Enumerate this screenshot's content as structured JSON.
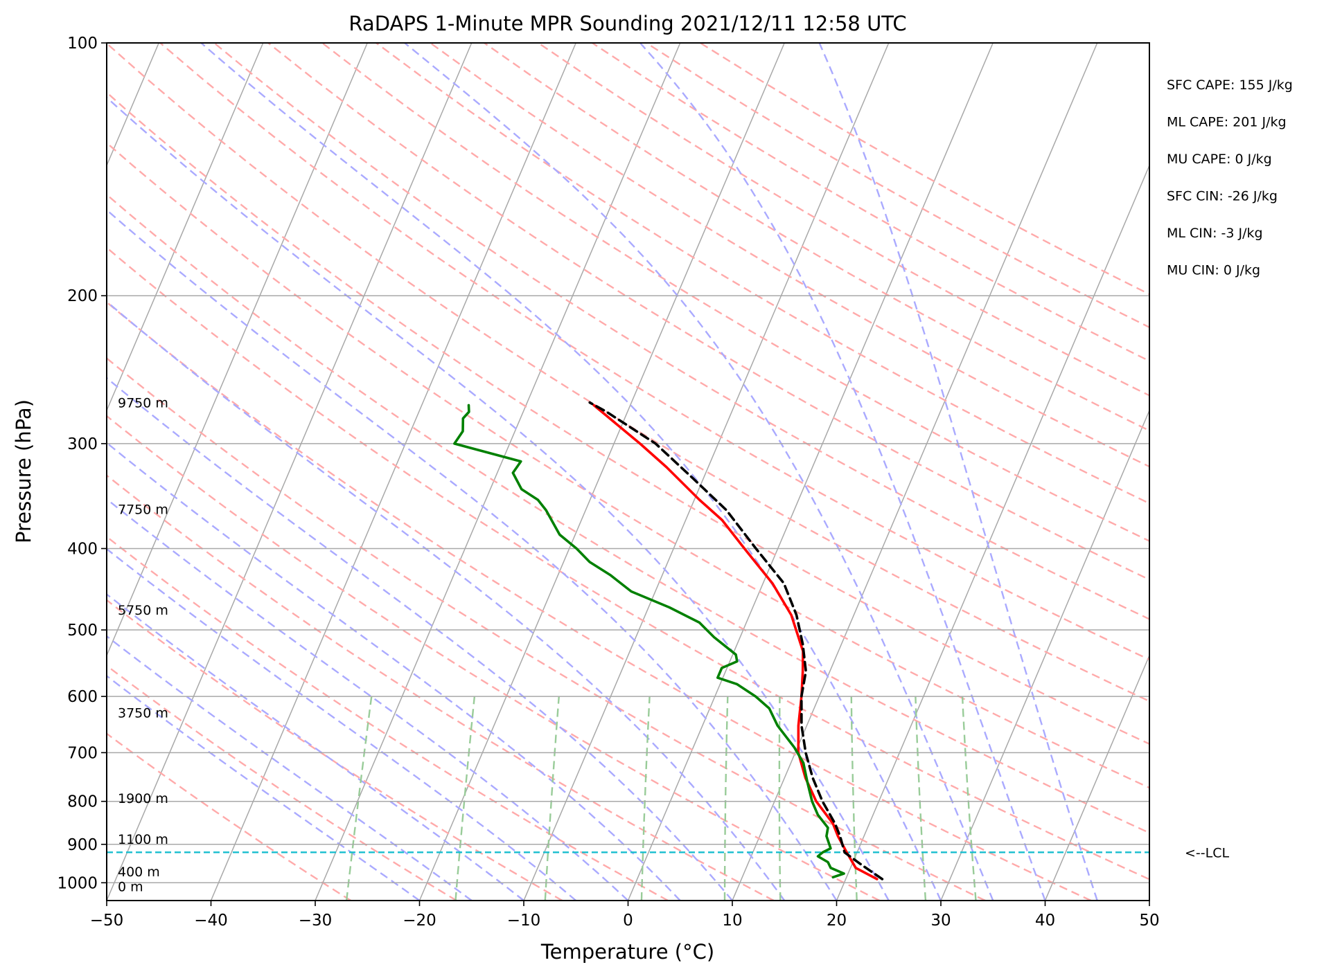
{
  "chart_data": {
    "type": "line",
    "title": "RaDAPS 1-Minute MPR Sounding 2021/12/11 12:58 UTC",
    "xlabel": "Temperature (°C)",
    "ylabel": "Pressure (hPa)",
    "xlim": [
      -50,
      50
    ],
    "ylim": [
      1050,
      100
    ],
    "yscale": "log",
    "skew": "skew-T log-P",
    "x_ticks": [
      "−50",
      "−40",
      "−30",
      "−20",
      "−10",
      "0",
      "10",
      "20",
      "30",
      "40",
      "50"
    ],
    "y_ticks": [
      "100",
      "200",
      "300",
      "400",
      "500",
      "600",
      "700",
      "800",
      "900",
      "1000"
    ],
    "height_labels": [
      {
        "text": "9750 m",
        "p": 268
      },
      {
        "text": "7750 m",
        "p": 359
      },
      {
        "text": "5750 m",
        "p": 473
      },
      {
        "text": "3750 m",
        "p": 627
      },
      {
        "text": "1900 m",
        "p": 793
      },
      {
        "text": "1100 m",
        "p": 887
      },
      {
        "text": "400 m",
        "p": 970
      },
      {
        "text": "0 m",
        "p": 1010
      }
    ],
    "stats": [
      "SFC CAPE: 155 J/kg",
      "ML CAPE: 201 J/kg",
      "MU CAPE: 0 J/kg",
      "SFC CIN: -26 J/kg",
      "ML CIN: -3 J/kg",
      "MU CIN: 0 J/kg"
    ],
    "lcl": {
      "label": "<--LCL",
      "pressure": 920,
      "color": "#17becf"
    },
    "series": [
      {
        "color": "#ff0000",
        "points": [
          [
            23.0,
            990
          ],
          [
            20.5,
            960
          ],
          [
            19.0,
            920
          ],
          [
            17.5,
            880
          ],
          [
            16.5,
            850
          ],
          [
            14.0,
            800
          ],
          [
            12.0,
            750
          ],
          [
            10.3,
            700
          ],
          [
            9.2,
            650
          ],
          [
            8.3,
            600
          ],
          [
            7.4,
            560
          ],
          [
            6.6,
            530
          ],
          [
            4.0,
            480
          ],
          [
            0.9,
            440
          ],
          [
            -3.2,
            400
          ],
          [
            -6.5,
            370
          ],
          [
            -9.5,
            350
          ],
          [
            -14.0,
            320
          ],
          [
            -17.5,
            300
          ],
          [
            -23.5,
            270
          ]
        ]
      },
      {
        "color": "#008000",
        "points": [
          [
            18.7,
            985
          ],
          [
            19.6,
            975
          ],
          [
            18.1,
            960
          ],
          [
            17.6,
            945
          ],
          [
            16.4,
            930
          ],
          [
            16.7,
            920
          ],
          [
            17.3,
            910
          ],
          [
            16.4,
            880
          ],
          [
            16.2,
            860
          ],
          [
            14.7,
            830
          ],
          [
            13.6,
            800
          ],
          [
            12.4,
            760
          ],
          [
            11.2,
            720
          ],
          [
            9.7,
            690
          ],
          [
            7.2,
            650
          ],
          [
            5.7,
            620
          ],
          [
            3.9,
            600
          ],
          [
            1.6,
            580
          ],
          [
            -0.5,
            570
          ],
          [
            -0.5,
            555
          ],
          [
            0.7,
            545
          ],
          [
            0.3,
            535
          ],
          [
            -2.5,
            510
          ],
          [
            -4.5,
            490
          ],
          [
            -8.0,
            470
          ],
          [
            -12.3,
            450
          ],
          [
            -15.0,
            430
          ],
          [
            -17.5,
            415
          ],
          [
            -19.3,
            400
          ],
          [
            -21.5,
            385
          ],
          [
            -23.8,
            360
          ],
          [
            -25.0,
            350
          ],
          [
            -27.0,
            340
          ],
          [
            -28.5,
            325
          ],
          [
            -28.2,
            315
          ],
          [
            -35.3,
            300
          ],
          [
            -35.0,
            290
          ],
          [
            -35.5,
            280
          ],
          [
            -35.2,
            275
          ],
          [
            -35.5,
            270
          ]
        ]
      },
      {
        "color": "#000000",
        "dash": "dashed",
        "points": [
          [
            23.5,
            990
          ],
          [
            20.8,
            950
          ],
          [
            18.8,
            920
          ],
          [
            17.7,
            880
          ],
          [
            16.7,
            850
          ],
          [
            14.6,
            800
          ],
          [
            12.7,
            750
          ],
          [
            11.0,
            700
          ],
          [
            9.5,
            650
          ],
          [
            8.3,
            600
          ],
          [
            7.7,
            560
          ],
          [
            6.3,
            520
          ],
          [
            4.5,
            480
          ],
          [
            2.0,
            440
          ],
          [
            -2.1,
            400
          ],
          [
            -6.5,
            360
          ],
          [
            -11.0,
            330
          ],
          [
            -16.0,
            300
          ],
          [
            -22.0,
            275
          ],
          [
            -24.0,
            268
          ]
        ]
      }
    ],
    "grid": true,
    "background_lines": {
      "isotherm_color": "#a8a8a8",
      "dry_adiabat_color": "#ffaaaa",
      "moist_adiabat_color": "#aaaaff",
      "mixing_ratio_color": "#99cc99"
    }
  }
}
